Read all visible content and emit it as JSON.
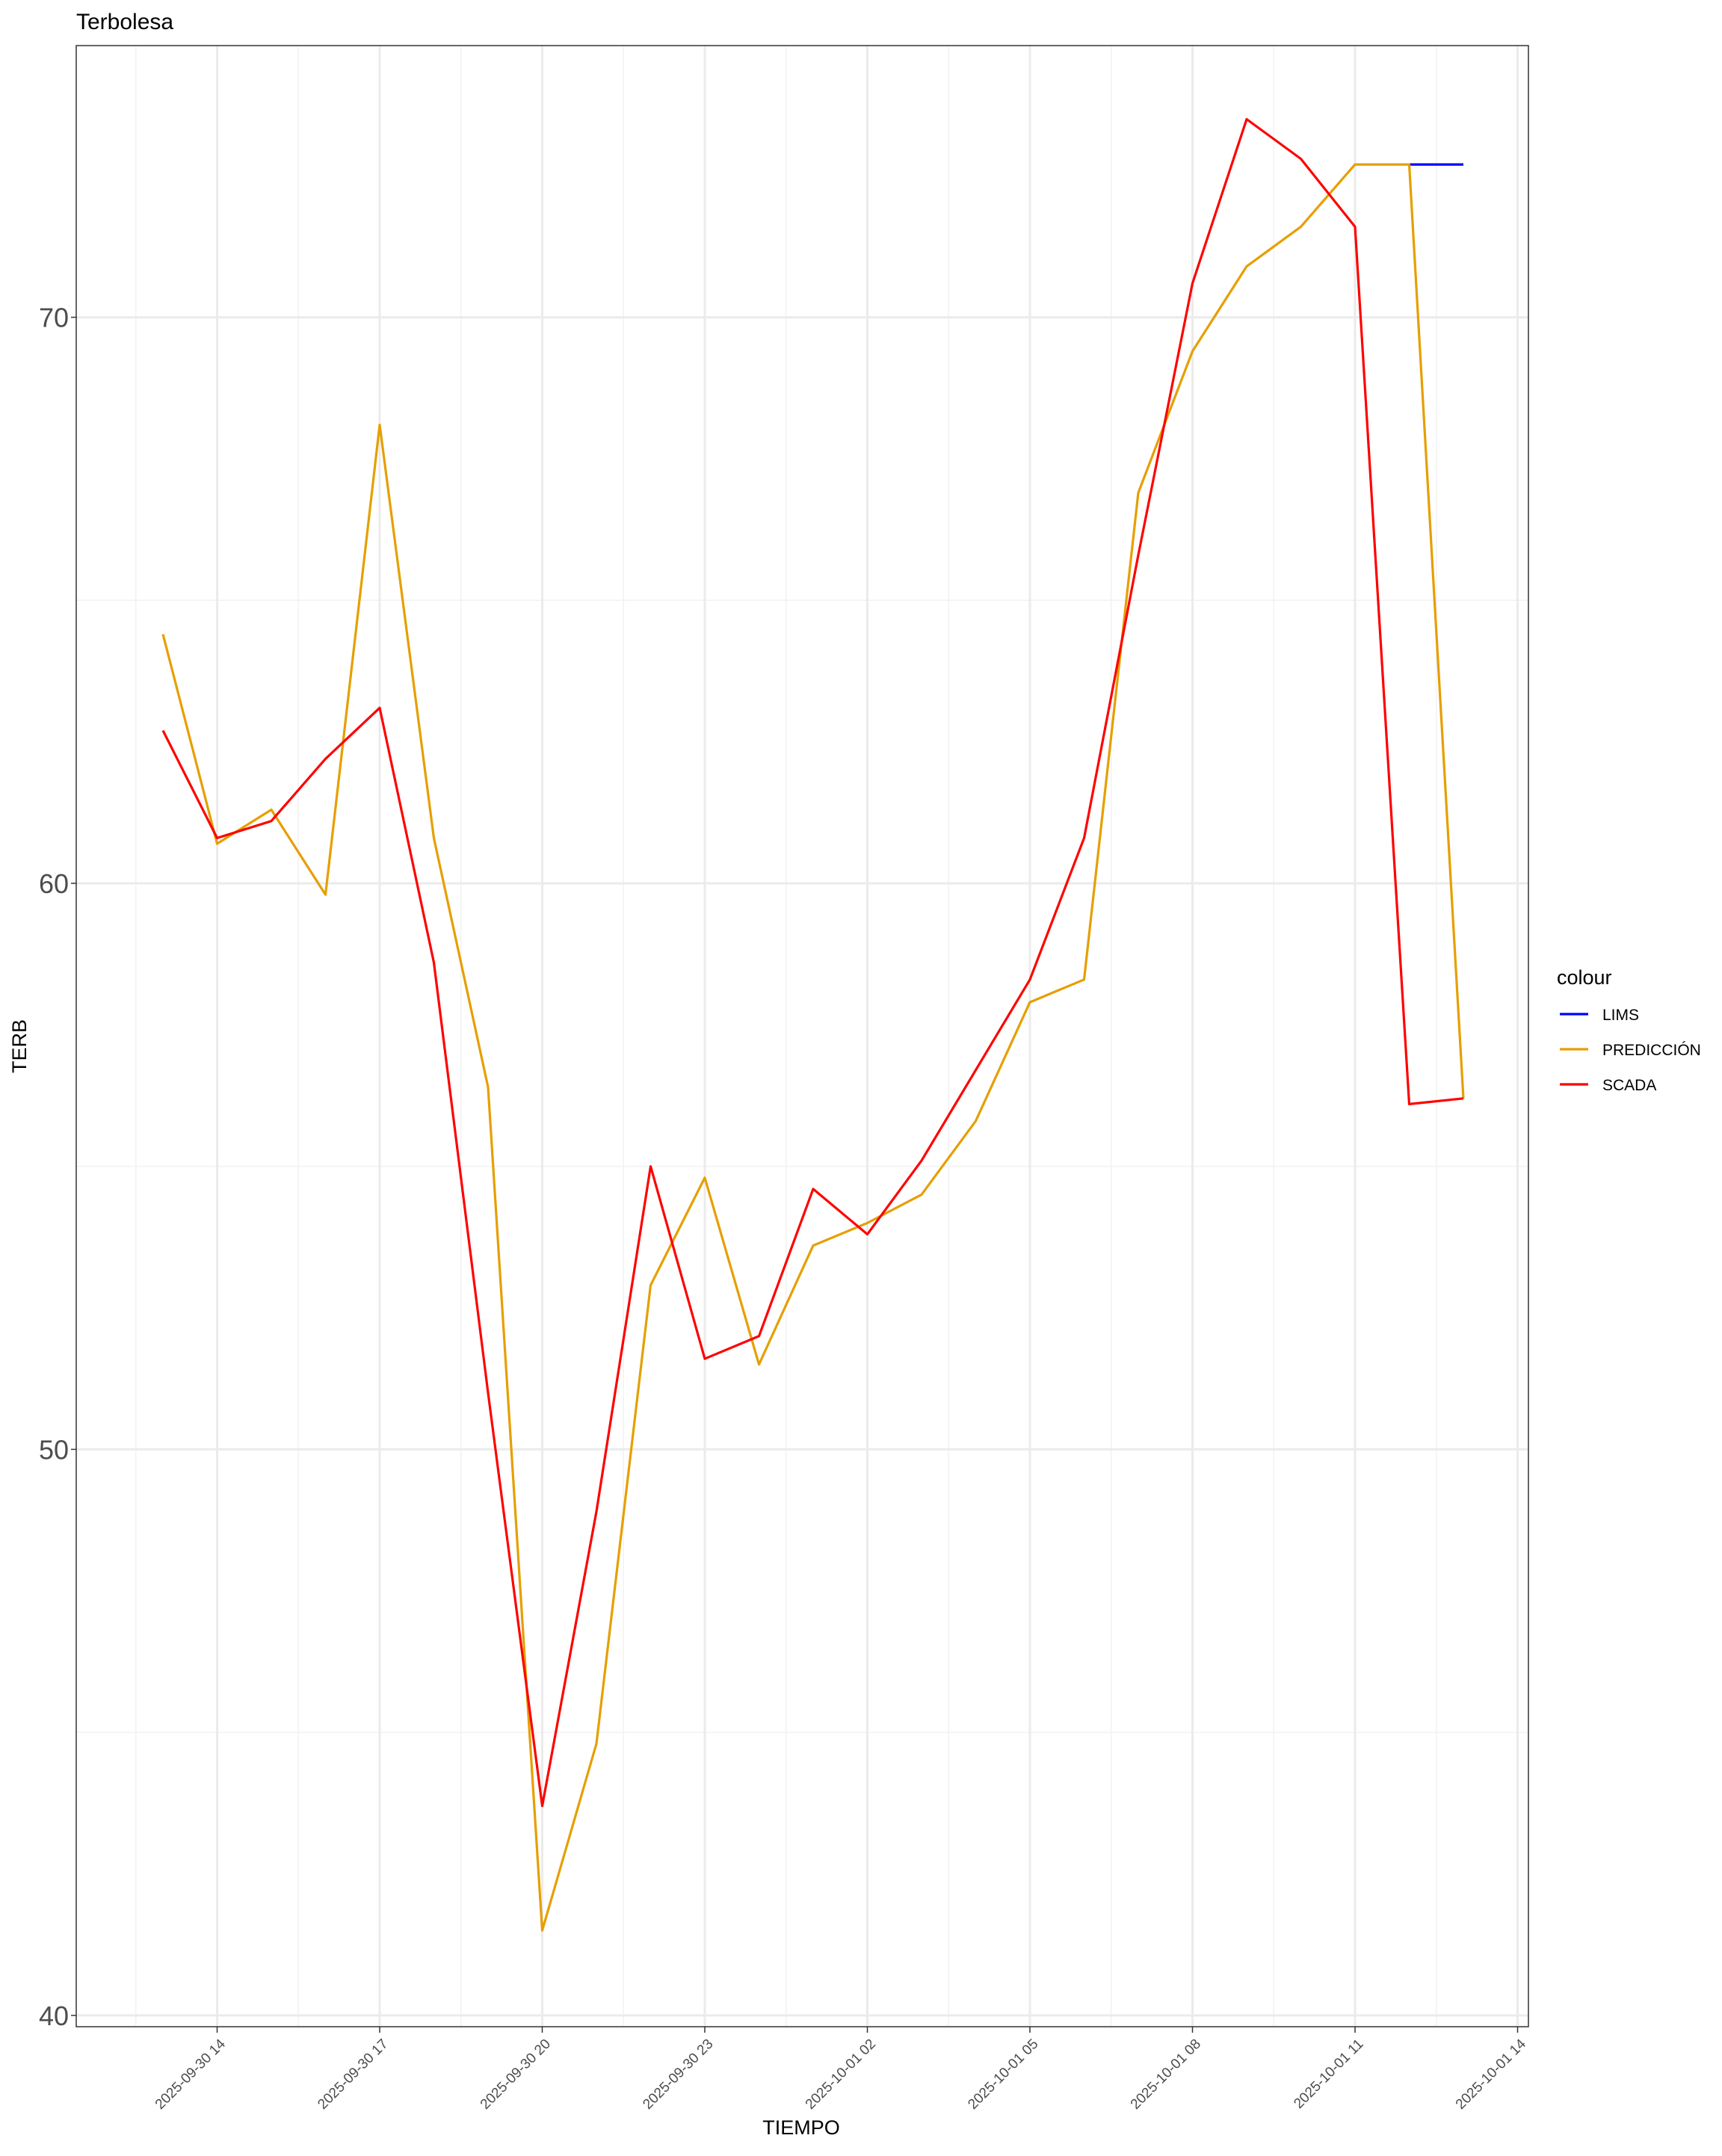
{
  "chart_data": {
    "type": "line",
    "title": "Terbolesa",
    "xlabel": "TIEMPO",
    "ylabel": "TERB",
    "x_axis": "datetime",
    "xlim": [
      "2025-09-30 11:24",
      "2025-10-01 14:12"
    ],
    "ylim": [
      39.8,
      74.8
    ],
    "y_ticks": [
      40,
      50,
      60,
      70
    ],
    "x_ticks": [
      "2025-09-30 14",
      "2025-09-30 17",
      "2025-09-30 20",
      "2025-09-30 23",
      "2025-10-01 02",
      "2025-10-01 05",
      "2025-10-01 08",
      "2025-10-01 11",
      "2025-10-01 14"
    ],
    "grid": true,
    "legend": {
      "title": "colour",
      "position": "right"
    },
    "series": [
      {
        "name": "LIMS",
        "color": "#0000ff",
        "x": [
          "2025-10-01 12:00",
          "2025-10-01 13:00"
        ],
        "values": [
          72.7,
          72.7
        ]
      },
      {
        "name": "PREDICCIÓN",
        "color": "#e69f00",
        "x": [
          "2025-09-30 13:00",
          "2025-09-30 14:00",
          "2025-09-30 15:00",
          "2025-09-30 16:00",
          "2025-09-30 17:00",
          "2025-09-30 18:00",
          "2025-09-30 19:00",
          "2025-09-30 20:00",
          "2025-09-30 21:00",
          "2025-09-30 22:00",
          "2025-09-30 23:00",
          "2025-10-01 00:00",
          "2025-10-01 01:00",
          "2025-10-01 02:00",
          "2025-10-01 03:00",
          "2025-10-01 04:00",
          "2025-10-01 05:00",
          "2025-10-01 06:00",
          "2025-10-01 07:00",
          "2025-10-01 08:00",
          "2025-10-01 09:00",
          "2025-10-01 10:00",
          "2025-10-01 11:00",
          "2025-10-01 12:00",
          "2025-10-01 13:00"
        ],
        "values": [
          64.4,
          60.7,
          61.3,
          59.8,
          68.1,
          60.8,
          56.4,
          41.5,
          44.8,
          52.9,
          54.8,
          51.5,
          53.6,
          54.0,
          54.5,
          55.8,
          57.9,
          58.3,
          66.9,
          69.4,
          70.9,
          71.6,
          72.7,
          72.7,
          56.2
        ]
      },
      {
        "name": "SCADA",
        "color": "#ff0000",
        "x": [
          "2025-09-30 13:00",
          "2025-09-30 14:00",
          "2025-09-30 15:00",
          "2025-09-30 16:00",
          "2025-09-30 17:00",
          "2025-09-30 18:00",
          "2025-09-30 19:00",
          "2025-09-30 20:00",
          "2025-09-30 21:00",
          "2025-09-30 22:00",
          "2025-09-30 23:00",
          "2025-10-01 00:00",
          "2025-10-01 01:00",
          "2025-10-01 02:00",
          "2025-10-01 03:00",
          "2025-10-01 04:00",
          "2025-10-01 05:00",
          "2025-10-01 06:00",
          "2025-10-01 07:00",
          "2025-10-01 08:00",
          "2025-10-01 09:00",
          "2025-10-01 10:00",
          "2025-10-01 11:00",
          "2025-10-01 12:00",
          "2025-10-01 13:00"
        ],
        "values": [
          62.7,
          60.8,
          61.1,
          62.2,
          63.1,
          58.6,
          51.0,
          43.7,
          48.9,
          55.0,
          51.6,
          52.0,
          54.6,
          53.8,
          55.1,
          56.7,
          58.3,
          60.8,
          65.8,
          70.6,
          73.5,
          72.8,
          71.6,
          56.1,
          56.2
        ]
      }
    ]
  }
}
